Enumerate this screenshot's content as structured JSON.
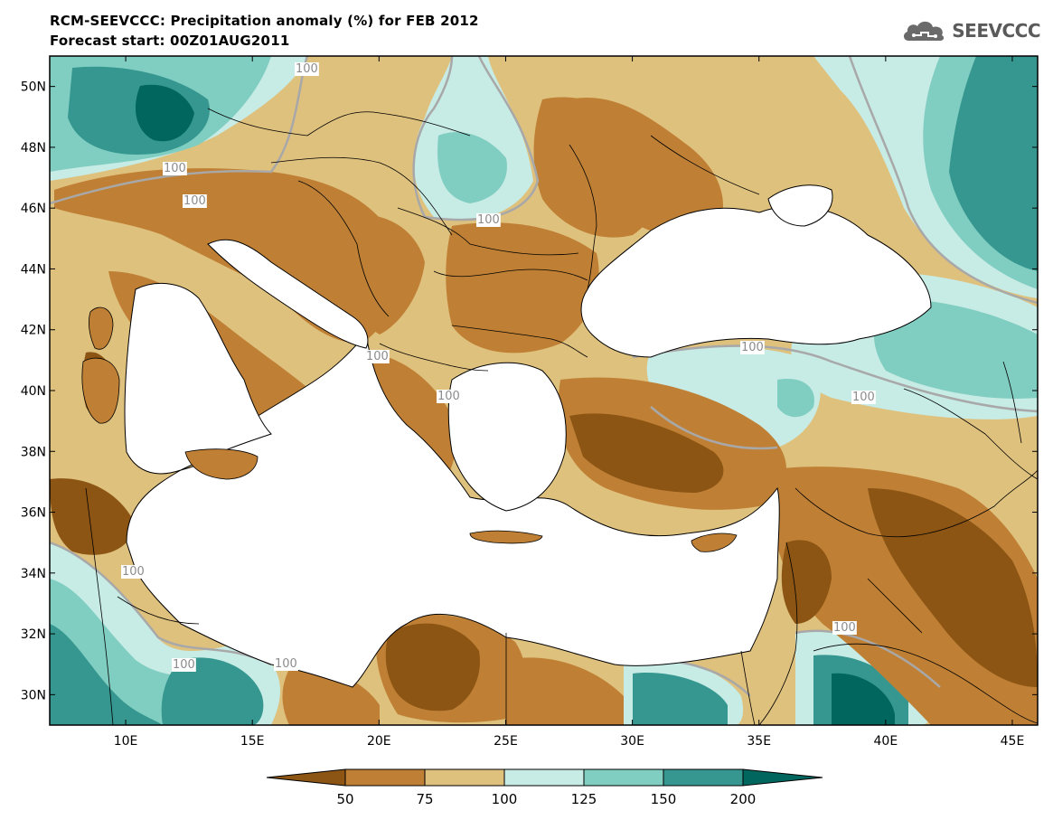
{
  "title_line1": "RCM-SEEVCCC: Precipitation anomaly (%) for FEB 2012",
  "title_line2": "Forecast start: 00Z01AUG2011",
  "logo": {
    "text": "SEEVCCC",
    "icon": "cloud-logo-icon"
  },
  "map": {
    "lon_range": [
      7,
      46
    ],
    "lat_range": [
      29,
      51
    ],
    "lat_ticks": [
      "50N",
      "48N",
      "46N",
      "44N",
      "42N",
      "40N",
      "38N",
      "36N",
      "34N",
      "32N",
      "30N"
    ],
    "lon_ticks": [
      "10E",
      "15E",
      "20E",
      "25E",
      "30E",
      "35E",
      "40E",
      "45E"
    ],
    "contour_labels": [
      "100",
      "100",
      "100",
      "100",
      "100",
      "100",
      "100",
      "100",
      "100",
      "100",
      "100",
      "100"
    ]
  },
  "colorbar": {
    "labels": [
      "50",
      "75",
      "100",
      "125",
      "150",
      "200"
    ],
    "colors": [
      "#8c5514",
      "#bf8035",
      "#dfc17e",
      "#c7ebe5",
      "#80cdc1",
      "#35978f",
      "#01665e"
    ]
  },
  "palette": {
    "water": "#ffffff",
    "class_lt50": "#8c5514",
    "class_50_75": "#bf8035",
    "class_75_100": "#dfc17e",
    "class_100_125": "#c7ebe5",
    "class_125_150": "#80cdc1",
    "class_150_200": "#35978f",
    "class_gt200": "#01665e",
    "contour_100": "#a8a8a8"
  }
}
